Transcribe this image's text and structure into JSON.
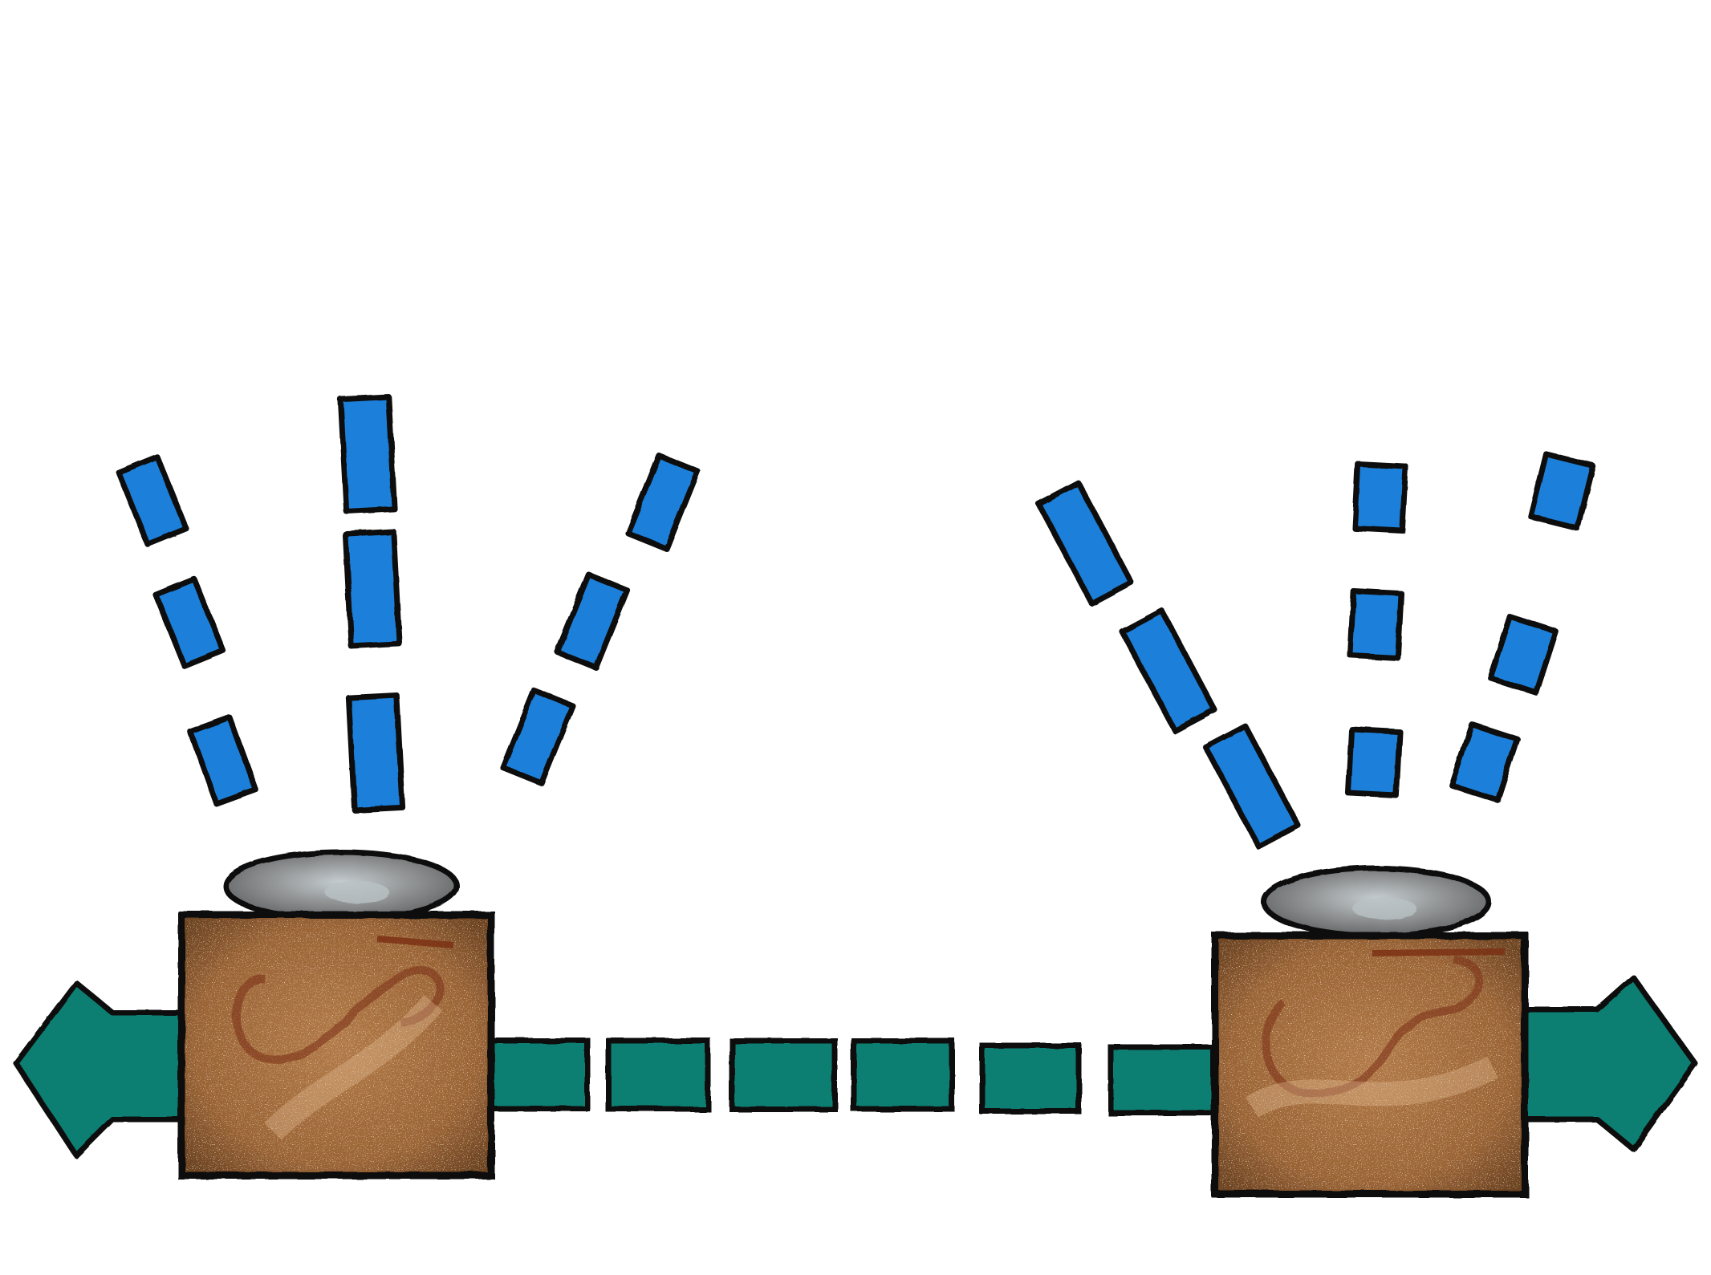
{
  "colors": {
    "background": "#ffffff",
    "outline": "#111111",
    "droplet": "#1a7fd9",
    "droplet_edge": "#0d5fb0",
    "pipe": "#0d7f72",
    "box": "#a06a3c",
    "box_swirl": "#7a2e12",
    "box_speckle": "#e8c49a",
    "cap": "#7d7d7d",
    "cap_highlight": "#b9c2c4"
  },
  "icons": {
    "left_unit": "leaking-box-icon",
    "right_unit": "leaking-box-icon",
    "left_arrow": "arrow-left-icon",
    "right_arrow": "arrow-right-icon",
    "droplets": "water-droplet-icon"
  }
}
